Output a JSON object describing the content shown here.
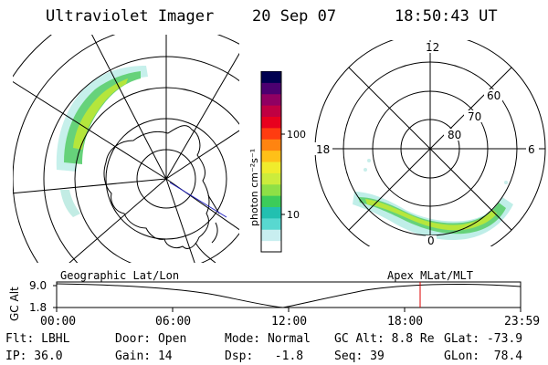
{
  "header": {
    "instrument": "Ultraviolet Imager",
    "date": "20 Sep 07",
    "time": "18:50:43 UT"
  },
  "geo_panel": {
    "label": "Geographic Lat/Lon"
  },
  "mag_panel": {
    "label": "Apex MLat/MLT",
    "mlt_labels": {
      "top": "12",
      "right": "6",
      "bottom": "0",
      "left": "18"
    },
    "lat_labels": [
      "60",
      "70",
      "80"
    ]
  },
  "colorbar": {
    "unit": "photon cm⁻²s⁻¹",
    "ticks": [
      {
        "label": "100",
        "value": 100
      },
      {
        "label": "10",
        "value": 10
      }
    ],
    "colors": [
      "#ffffff",
      "#c8eef0",
      "#58d8d0",
      "#22c0b0",
      "#3ccc5a",
      "#8ee046",
      "#ccec3c",
      "#f0ec2c",
      "#ffc018",
      "#ff8410",
      "#ff3c10",
      "#e8001e",
      "#c00042",
      "#900062",
      "#4c0070",
      "#000050"
    ]
  },
  "altitude_strip": {
    "ylabel": "GC Alt",
    "ymax_label": "9.0",
    "ymin_label": "1.8",
    "x_labels": [
      "00:00",
      "06:00",
      "12:00",
      "18:00",
      "23:59"
    ],
    "current_time_color": "#dd0000"
  },
  "status": {
    "flt": "Flt: LBHL",
    "ip": "IP: 36.0",
    "door": "Door: Open",
    "gain": "Gain: 14",
    "mode": "Mode: Normal",
    "dsp": "Dsp:   -1.8",
    "gcalt": "GC Alt: 8.8 Re",
    "seq": "Seq: 39",
    "glat": "GLat: -73.9",
    "glon": "GLon:  78.4"
  }
}
